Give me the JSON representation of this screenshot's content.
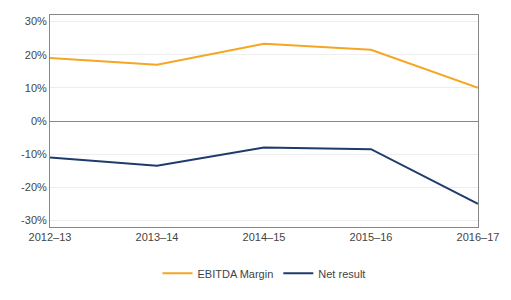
{
  "chart_data": {
    "type": "line",
    "categories": [
      "2012–13",
      "2013–14",
      "2014–15",
      "2015–16",
      "2016–17"
    ],
    "series": [
      {
        "name": "EBITDA Margin",
        "color": "#F5A623",
        "values": [
          0.19,
          0.17,
          0.233,
          0.215,
          0.1
        ]
      },
      {
        "name": "Net result",
        "color": "#1F3B6B",
        "values": [
          -0.11,
          -0.135,
          -0.08,
          -0.085,
          -0.25
        ]
      }
    ],
    "ylim": [
      -0.32,
      0.32
    ],
    "yticks": [
      {
        "value": -0.3,
        "label": "-30%"
      },
      {
        "value": -0.2,
        "label": "-20%"
      },
      {
        "value": -0.1,
        "label": "-10%"
      },
      {
        "value": 0.0,
        "label": "0%"
      },
      {
        "value": 0.1,
        "label": "10%"
      },
      {
        "value": 0.2,
        "label": "20%"
      },
      {
        "value": 0.3,
        "label": "30%"
      }
    ],
    "grid": true,
    "legend": "bottom"
  }
}
